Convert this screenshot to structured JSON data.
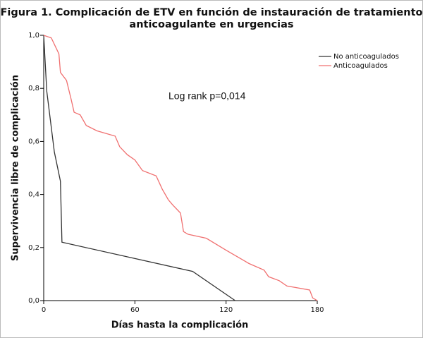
{
  "chart_data": {
    "type": "line",
    "title": [
      "Figura 1. Complicación de ETV en función de instauración de tratamiento",
      "anticoagulante en urgencias"
    ],
    "x_label": "Días hasta la complicación",
    "y_label": "Supervivencia libre de complicación",
    "annotation": "Log rank p=0,014",
    "xlim": [
      0,
      180
    ],
    "xticks": [
      0,
      60,
      120,
      180
    ],
    "ylim": [
      0,
      1
    ],
    "yticks": [
      {
        "value": 0,
        "label": "0,0"
      },
      {
        "value": 0.2,
        "label": "0,2"
      },
      {
        "value": 0.4,
        "label": "0,4"
      },
      {
        "value": 0.6,
        "label": "0,6"
      },
      {
        "value": 0.8,
        "label": "0,8"
      },
      {
        "value": 1,
        "label": "1,0"
      }
    ],
    "series": [
      {
        "name": "No anticoagulados",
        "color": "#333333",
        "x": [
          0,
          2,
          7,
          11,
          12,
          98,
          126
        ],
        "values": [
          1,
          0.79,
          0.56,
          0.45,
          0.22,
          0.11,
          0
        ]
      },
      {
        "name": "Anticoagulados",
        "color": "#f07070",
        "x": [
          0,
          5,
          10,
          11,
          15,
          18,
          20,
          24,
          28,
          35,
          47,
          50,
          55,
          60,
          65,
          74,
          78,
          82,
          85,
          90,
          92,
          95,
          107,
          120,
          132,
          135,
          145,
          148,
          155,
          160,
          175,
          177,
          180
        ],
        "values": [
          1,
          0.99,
          0.93,
          0.86,
          0.83,
          0.76,
          0.71,
          0.7,
          0.66,
          0.64,
          0.62,
          0.58,
          0.55,
          0.53,
          0.49,
          0.47,
          0.42,
          0.38,
          0.36,
          0.33,
          0.26,
          0.25,
          0.235,
          0.19,
          0.15,
          0.14,
          0.115,
          0.09,
          0.075,
          0.055,
          0.04,
          0.01,
          0
        ]
      }
    ]
  }
}
